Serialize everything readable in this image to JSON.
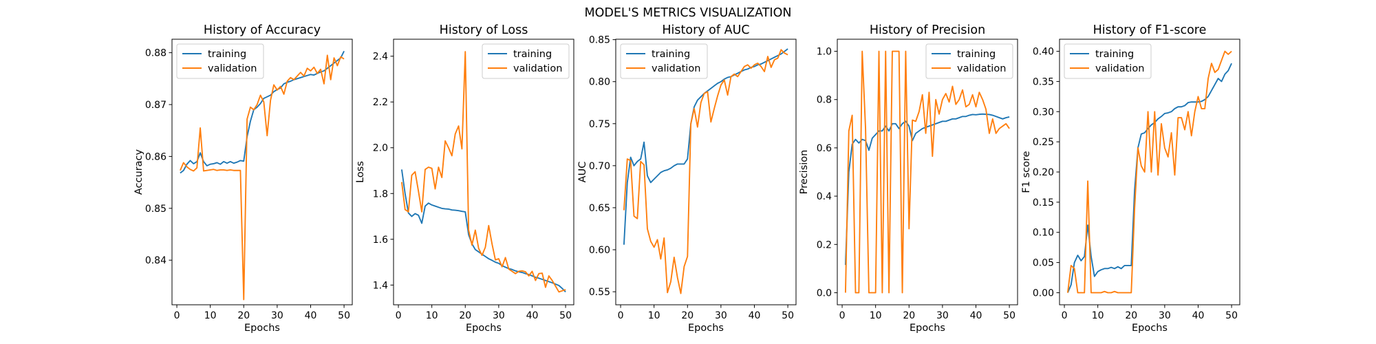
{
  "suptitle": "MODEL'S METRICS VISUALIZATION",
  "colors": {
    "training": "#1f77b4",
    "validation": "#ff7f0e"
  },
  "chart_data": [
    {
      "type": "line",
      "title": "History of Accuracy",
      "xlabel": "Epochs",
      "ylabel": "Accuracy",
      "xlim": [
        -1.45,
        52.45
      ],
      "ylim": [
        0.8314,
        0.8826
      ],
      "xticks": [
        0,
        10,
        20,
        30,
        40,
        50
      ],
      "yticks": [
        0.84,
        0.85,
        0.86,
        0.87,
        0.88
      ],
      "ytick_labels": [
        "0.84",
        "0.85",
        "0.86",
        "0.87",
        "0.88"
      ],
      "legend": "upper-left",
      "x": [
        1,
        2,
        3,
        4,
        5,
        6,
        7,
        8,
        9,
        10,
        11,
        12,
        13,
        14,
        15,
        16,
        17,
        18,
        19,
        20,
        21,
        22,
        23,
        24,
        25,
        26,
        27,
        28,
        29,
        30,
        31,
        32,
        33,
        34,
        35,
        36,
        37,
        38,
        39,
        40,
        41,
        42,
        43,
        44,
        45,
        46,
        47,
        48,
        49,
        50
      ],
      "series": [
        {
          "name": "training",
          "values": [
            0.8568,
            0.8573,
            0.8585,
            0.8592,
            0.8586,
            0.859,
            0.8607,
            0.859,
            0.8582,
            0.8585,
            0.8586,
            0.8588,
            0.8585,
            0.859,
            0.8587,
            0.859,
            0.8587,
            0.8589,
            0.8592,
            0.8591,
            0.8638,
            0.8668,
            0.869,
            0.8695,
            0.8702,
            0.8712,
            0.8715,
            0.8718,
            0.8725,
            0.8729,
            0.8732,
            0.874,
            0.8743,
            0.8745,
            0.8748,
            0.875,
            0.8752,
            0.8754,
            0.8756,
            0.8758,
            0.8757,
            0.876,
            0.8763,
            0.8765,
            0.877,
            0.8775,
            0.878,
            0.8785,
            0.879,
            0.8803
          ]
        },
        {
          "name": "validation",
          "values": [
            0.8573,
            0.8588,
            0.858,
            0.8575,
            0.8572,
            0.8578,
            0.8655,
            0.8572,
            0.8573,
            0.8574,
            0.8575,
            0.8573,
            0.8574,
            0.8574,
            0.8573,
            0.8574,
            0.8573,
            0.8573,
            0.8573,
            0.8324,
            0.8672,
            0.8695,
            0.869,
            0.87,
            0.8718,
            0.8705,
            0.864,
            0.8708,
            0.8738,
            0.8728,
            0.8735,
            0.872,
            0.8745,
            0.8752,
            0.8748,
            0.8755,
            0.8762,
            0.8755,
            0.877,
            0.8765,
            0.8772,
            0.876,
            0.8768,
            0.874,
            0.8795,
            0.8748,
            0.879,
            0.8775,
            0.8792,
            0.8788
          ]
        }
      ]
    },
    {
      "type": "line",
      "title": "History of Loss",
      "xlabel": "Epochs",
      "ylabel": "Loss",
      "xlim": [
        -1.45,
        52.45
      ],
      "ylim": [
        1.3138,
        2.4742
      ],
      "xticks": [
        0,
        10,
        20,
        30,
        40,
        50
      ],
      "yticks": [
        1.4,
        1.6,
        1.8,
        2.0,
        2.2,
        2.4
      ],
      "ytick_labels": [
        "1.4",
        "1.6",
        "1.8",
        "2.0",
        "2.2",
        "2.4"
      ],
      "legend": "upper-right",
      "x": [
        1,
        2,
        3,
        4,
        5,
        6,
        7,
        8,
        9,
        10,
        11,
        12,
        13,
        14,
        15,
        16,
        17,
        18,
        19,
        20,
        21,
        22,
        23,
        24,
        25,
        26,
        27,
        28,
        29,
        30,
        31,
        32,
        33,
        34,
        35,
        36,
        37,
        38,
        39,
        40,
        41,
        42,
        43,
        44,
        45,
        46,
        47,
        48,
        49,
        50
      ],
      "series": [
        {
          "name": "training",
          "values": [
            1.905,
            1.8,
            1.715,
            1.7,
            1.712,
            1.705,
            1.67,
            1.745,
            1.758,
            1.75,
            1.745,
            1.74,
            1.735,
            1.733,
            1.732,
            1.728,
            1.727,
            1.725,
            1.722,
            1.72,
            1.62,
            1.58,
            1.555,
            1.545,
            1.535,
            1.525,
            1.515,
            1.508,
            1.5,
            1.495,
            1.485,
            1.478,
            1.472,
            1.468,
            1.462,
            1.458,
            1.455,
            1.45,
            1.446,
            1.44,
            1.434,
            1.43,
            1.425,
            1.42,
            1.415,
            1.41,
            1.404,
            1.398,
            1.385,
            1.37
          ]
        },
        {
          "name": "validation",
          "values": [
            1.85,
            1.73,
            1.72,
            1.88,
            1.895,
            1.81,
            1.72,
            1.905,
            1.915,
            1.91,
            1.82,
            1.915,
            1.87,
            2.03,
            2.0,
            1.965,
            2.06,
            2.095,
            1.995,
            2.42,
            1.64,
            1.575,
            1.64,
            1.56,
            1.53,
            1.565,
            1.66,
            1.58,
            1.51,
            1.515,
            1.48,
            1.52,
            1.47,
            1.46,
            1.45,
            1.46,
            1.462,
            1.458,
            1.44,
            1.46,
            1.42,
            1.45,
            1.452,
            1.39,
            1.44,
            1.42,
            1.395,
            1.37,
            1.375,
            1.38
          ]
        }
      ]
    },
    {
      "type": "line",
      "title": "History of AUC",
      "xlabel": "Epochs",
      "ylabel": "AUC",
      "xlim": [
        -1.45,
        52.45
      ],
      "ylim": [
        0.5345,
        0.8505
      ],
      "xticks": [
        0,
        10,
        20,
        30,
        40,
        50
      ],
      "yticks": [
        0.55,
        0.6,
        0.65,
        0.7,
        0.75,
        0.8,
        0.85
      ],
      "ytick_labels": [
        "0.55",
        "0.60",
        "0.65",
        "0.70",
        "0.75",
        "0.80",
        "0.85"
      ],
      "legend": "upper-left",
      "x": [
        1,
        2,
        3,
        4,
        5,
        6,
        7,
        8,
        9,
        10,
        11,
        12,
        13,
        14,
        15,
        16,
        17,
        18,
        19,
        20,
        21,
        22,
        23,
        24,
        25,
        26,
        27,
        28,
        29,
        30,
        31,
        32,
        33,
        34,
        35,
        36,
        37,
        38,
        39,
        40,
        41,
        42,
        43,
        44,
        45,
        46,
        47,
        48,
        49,
        50
      ],
      "series": [
        {
          "name": "training",
          "values": [
            0.606,
            0.68,
            0.71,
            0.7,
            0.705,
            0.708,
            0.728,
            0.688,
            0.68,
            0.684,
            0.688,
            0.692,
            0.694,
            0.695,
            0.697,
            0.7,
            0.702,
            0.702,
            0.702,
            0.708,
            0.75,
            0.77,
            0.778,
            0.782,
            0.786,
            0.789,
            0.792,
            0.795,
            0.798,
            0.8,
            0.803,
            0.805,
            0.806,
            0.808,
            0.81,
            0.812,
            0.814,
            0.815,
            0.817,
            0.818,
            0.82,
            0.821,
            0.823,
            0.825,
            0.827,
            0.829,
            0.831,
            0.833,
            0.836,
            0.839
          ]
        },
        {
          "name": "validation",
          "values": [
            0.647,
            0.708,
            0.706,
            0.64,
            0.637,
            0.705,
            0.701,
            0.625,
            0.61,
            0.603,
            0.612,
            0.589,
            0.614,
            0.549,
            0.562,
            0.591,
            0.567,
            0.548,
            0.58,
            0.592,
            0.75,
            0.768,
            0.746,
            0.775,
            0.786,
            0.788,
            0.752,
            0.768,
            0.783,
            0.796,
            0.802,
            0.784,
            0.806,
            0.809,
            0.806,
            0.812,
            0.818,
            0.82,
            0.816,
            0.82,
            0.822,
            0.818,
            0.812,
            0.83,
            0.817,
            0.826,
            0.828,
            0.838,
            0.834,
            0.832
          ]
        }
      ]
    },
    {
      "type": "line",
      "title": "History of Precision",
      "xlabel": "Epochs",
      "ylabel": "Precision",
      "xlim": [
        -1.45,
        52.45
      ],
      "ylim": [
        -0.05,
        1.05
      ],
      "xticks": [
        0,
        10,
        20,
        30,
        40,
        50
      ],
      "yticks": [
        0.0,
        0.2,
        0.4,
        0.6,
        0.8,
        1.0
      ],
      "ytick_labels": [
        "0.0",
        "0.2",
        "0.4",
        "0.6",
        "0.8",
        "1.0"
      ],
      "legend": "upper-right",
      "x": [
        1,
        2,
        3,
        4,
        5,
        6,
        7,
        8,
        9,
        10,
        11,
        12,
        13,
        14,
        15,
        16,
        17,
        18,
        19,
        20,
        21,
        22,
        23,
        24,
        25,
        26,
        27,
        28,
        29,
        30,
        31,
        32,
        33,
        34,
        35,
        36,
        37,
        38,
        39,
        40,
        41,
        42,
        43,
        44,
        45,
        46,
        47,
        48,
        49,
        50
      ],
      "series": [
        {
          "name": "training",
          "values": [
            0.115,
            0.5,
            0.615,
            0.635,
            0.62,
            0.635,
            0.63,
            0.59,
            0.64,
            0.655,
            0.67,
            0.67,
            0.69,
            0.67,
            0.7,
            0.7,
            0.68,
            0.7,
            0.71,
            0.69,
            0.63,
            0.66,
            0.67,
            0.68,
            0.685,
            0.69,
            0.695,
            0.7,
            0.705,
            0.71,
            0.71,
            0.715,
            0.72,
            0.72,
            0.725,
            0.73,
            0.73,
            0.735,
            0.738,
            0.737,
            0.739,
            0.74,
            0.739,
            0.738,
            0.735,
            0.73,
            0.725,
            0.72,
            0.725,
            0.728
          ]
        },
        {
          "name": "validation",
          "values": [
            0.0,
            0.67,
            0.735,
            0.0,
            0.0,
            1.0,
            0.68,
            0.0,
            0.0,
            0.0,
            1.0,
            0.0,
            1.0,
            0.0,
            1.0,
            1.0,
            1.0,
            0.0,
            1.0,
            0.265,
            0.715,
            0.71,
            0.75,
            0.82,
            0.66,
            0.83,
            0.565,
            0.8,
            0.74,
            0.8,
            0.825,
            0.79,
            0.855,
            0.78,
            0.8,
            0.84,
            0.77,
            0.78,
            0.82,
            0.77,
            0.83,
            0.8,
            0.76,
            0.66,
            0.72,
            0.66,
            0.68,
            0.69,
            0.7,
            0.68
          ]
        }
      ]
    },
    {
      "type": "line",
      "title": "History of F1-score",
      "xlabel": "Epochs",
      "ylabel": "F1 score",
      "xlim": [
        -1.45,
        52.45
      ],
      "ylim": [
        -0.02,
        0.42
      ],
      "xticks": [
        0,
        10,
        20,
        30,
        40,
        50
      ],
      "yticks": [
        0.0,
        0.05,
        0.1,
        0.15,
        0.2,
        0.25,
        0.3,
        0.35,
        0.4
      ],
      "ytick_labels": [
        "0.00",
        "0.05",
        "0.10",
        "0.15",
        "0.20",
        "0.25",
        "0.30",
        "0.35",
        "0.40"
      ],
      "legend": "upper-left",
      "x": [
        1,
        2,
        3,
        4,
        5,
        6,
        7,
        8,
        9,
        10,
        11,
        12,
        13,
        14,
        15,
        16,
        17,
        18,
        19,
        20,
        21,
        22,
        23,
        24,
        25,
        26,
        27,
        28,
        29,
        30,
        31,
        32,
        33,
        34,
        35,
        36,
        37,
        38,
        39,
        40,
        41,
        42,
        43,
        44,
        45,
        46,
        47,
        48,
        49,
        50
      ],
      "series": [
        {
          "name": "training",
          "values": [
            0.0,
            0.013,
            0.05,
            0.062,
            0.053,
            0.06,
            0.112,
            0.06,
            0.027,
            0.035,
            0.038,
            0.04,
            0.04,
            0.042,
            0.04,
            0.043,
            0.04,
            0.045,
            0.045,
            0.045,
            0.17,
            0.24,
            0.263,
            0.265,
            0.272,
            0.278,
            0.282,
            0.288,
            0.292,
            0.297,
            0.298,
            0.3,
            0.305,
            0.308,
            0.308,
            0.31,
            0.315,
            0.316,
            0.316,
            0.316,
            0.317,
            0.32,
            0.325,
            0.335,
            0.345,
            0.355,
            0.35,
            0.362,
            0.368,
            0.38
          ]
        },
        {
          "name": "validation",
          "values": [
            0.0,
            0.045,
            0.04,
            0.0,
            0.0,
            0.0,
            0.185,
            0.0,
            0.0,
            0.0,
            0.0,
            0.002,
            0.0,
            0.0,
            0.002,
            0.0,
            0.0,
            0.0,
            0.0,
            0.0,
            0.14,
            0.24,
            0.21,
            0.2,
            0.3,
            0.2,
            0.3,
            0.195,
            0.28,
            0.24,
            0.225,
            0.265,
            0.195,
            0.29,
            0.29,
            0.27,
            0.3,
            0.26,
            0.3,
            0.325,
            0.305,
            0.305,
            0.355,
            0.38,
            0.365,
            0.37,
            0.385,
            0.4,
            0.395,
            0.4
          ]
        }
      ]
    }
  ]
}
